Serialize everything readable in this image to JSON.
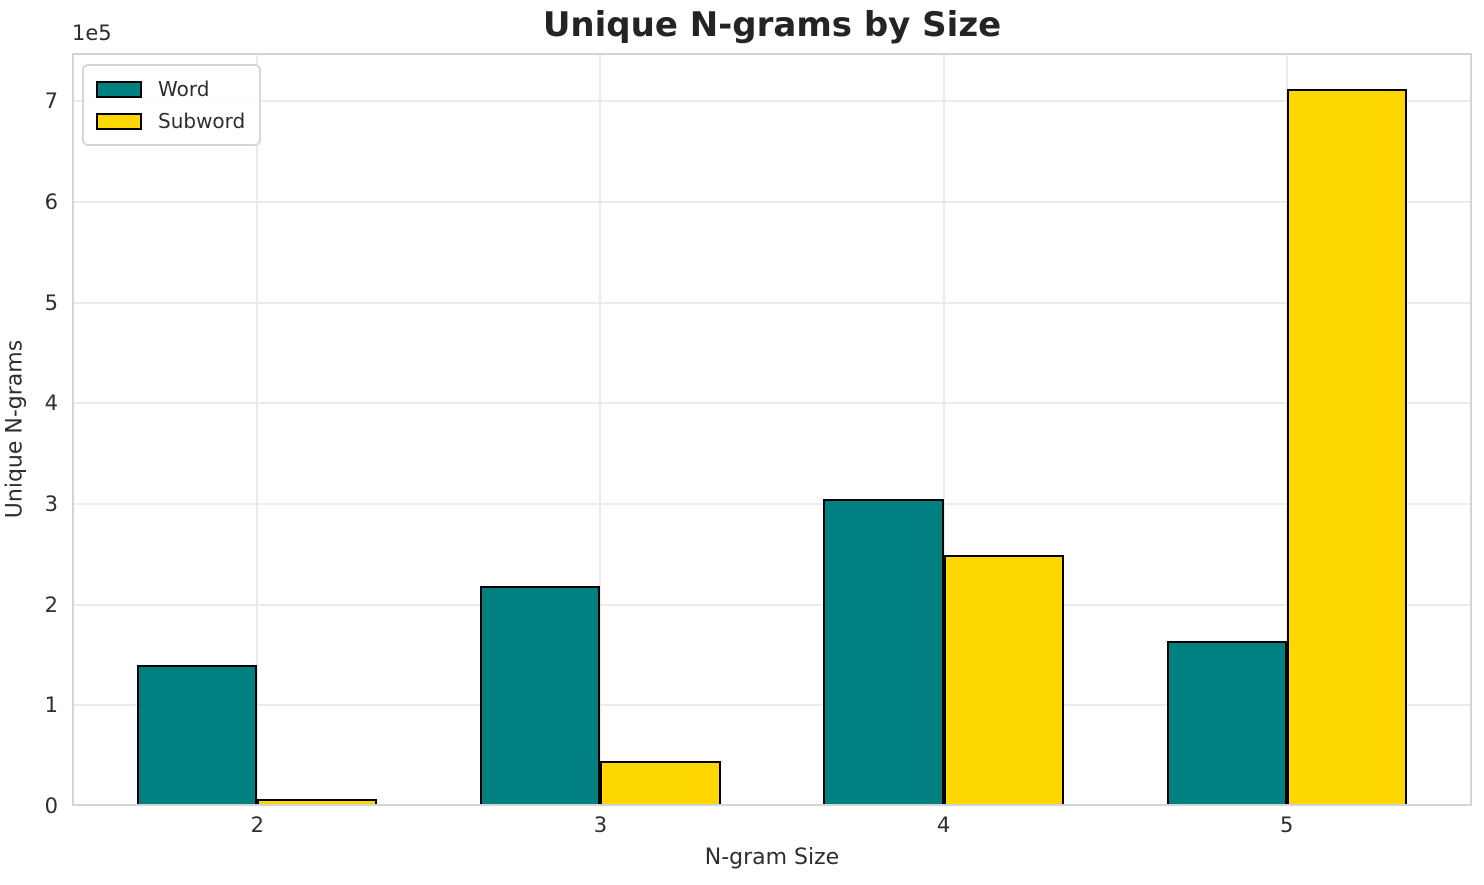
{
  "chart_data": {
    "type": "bar",
    "title": "Unique N-grams by Size",
    "xlabel": "N-gram Size",
    "ylabel": "Unique N-grams",
    "y_offset_label": "1e5",
    "categories": [
      "2",
      "3",
      "4",
      "5"
    ],
    "series": [
      {
        "name": "Word",
        "color": "#008080",
        "values": [
          140000,
          219000,
          305000,
          164000
        ]
      },
      {
        "name": "Subword",
        "color": "#FFD700",
        "values": [
          7000,
          45000,
          249000,
          712000
        ]
      }
    ],
    "ylim": [
      0,
      748000
    ],
    "yticks": [
      0,
      100000,
      200000,
      300000,
      400000,
      500000,
      600000,
      700000
    ],
    "ytick_labels": [
      "0",
      "1",
      "2",
      "3",
      "4",
      "5",
      "6",
      "7"
    ],
    "xlim": [
      -0.54,
      3.54
    ],
    "bar_width": 0.35,
    "grid": true,
    "legend_position": "upper left",
    "bar_edge_color": "#000000",
    "grid_color": "#ebebeb",
    "spine_color": "#d4d4d4"
  }
}
